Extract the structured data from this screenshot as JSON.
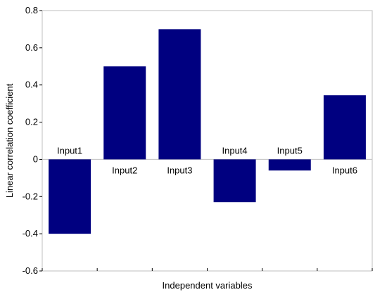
{
  "chart_data": {
    "type": "bar",
    "title": "",
    "xlabel": "Independent variables",
    "ylabel": "Linear correlation coefficient",
    "ylim": [
      -0.6,
      0.8
    ],
    "yticks": [
      "-0.6",
      "-0.4",
      "-0.2",
      "0",
      "0.2",
      "0.4",
      "0.6",
      "0.8"
    ],
    "categories": [
      "Input1",
      "Input2",
      "Input3",
      "Input4",
      "Input5",
      "Input6"
    ],
    "values": [
      -0.4,
      0.5,
      0.7,
      -0.23,
      -0.06,
      0.345
    ],
    "bar_color": "#000080",
    "grid": false,
    "legend": "none"
  }
}
